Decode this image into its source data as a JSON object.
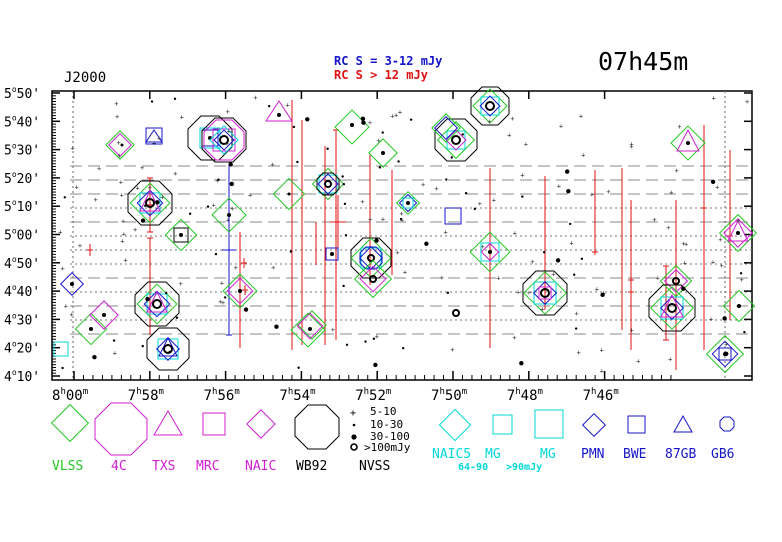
{
  "header": {
    "epoch": "J2000",
    "field_label": "07h45m",
    "rc_faint_label": "RC S = 3-12 mJy",
    "rc_bright_label": "RC S > 12 mJy",
    "rc_faint_color": "#1414c8",
    "rc_bright_color": "#e01010"
  },
  "axes": {
    "dec_ticks": [
      {
        "deg": "4",
        "min": "10'"
      },
      {
        "deg": "4",
        "min": "20'"
      },
      {
        "deg": "4",
        "min": "30'"
      },
      {
        "deg": "4",
        "min": "40'"
      },
      {
        "deg": "4",
        "min": "50'"
      },
      {
        "deg": "5",
        "min": "00'"
      },
      {
        "deg": "5",
        "min": "10'"
      },
      {
        "deg": "5",
        "min": "20'"
      },
      {
        "deg": "5",
        "min": "30'"
      },
      {
        "deg": "5",
        "min": "40'"
      },
      {
        "deg": "5",
        "min": "50'"
      }
    ],
    "ra_ticks": [
      {
        "h": "8",
        "m": "00"
      },
      {
        "h": "7",
        "m": "58"
      },
      {
        "h": "7",
        "m": "56"
      },
      {
        "h": "7",
        "m": "54"
      },
      {
        "h": "7",
        "m": "52"
      },
      {
        "h": "7",
        "m": "50"
      },
      {
        "h": "7",
        "m": "48"
      },
      {
        "h": "7",
        "m": "46"
      }
    ]
  },
  "legend": {
    "catalogs": [
      {
        "label": "VLSS",
        "symbol": "diamond-icon",
        "color": "#22c822"
      },
      {
        "label": "4C",
        "symbol": "octagon-icon",
        "color": "#d020d0"
      },
      {
        "label": "TXS",
        "symbol": "triangle-icon",
        "color": "#d020d0"
      },
      {
        "label": "MRC",
        "symbol": "square-icon",
        "color": "#d020d0"
      },
      {
        "label": "NAIC",
        "symbol": "diamond-icon",
        "color": "#d020d0"
      },
      {
        "label": "WB92",
        "symbol": "octagon-icon",
        "color": "#000000"
      }
    ],
    "nvss": {
      "title": "NVSS",
      "bins": [
        "5-10",
        "10-30",
        "30-100",
        ">100mJy"
      ]
    },
    "cyan": {
      "naic5": "NAIC5",
      "mg1": "MG",
      "mg2": "MG",
      "mg1_range": "64-90",
      "mg2_range": ">90mJy",
      "color": "#00d8d8"
    },
    "blue": [
      {
        "label": "PMN",
        "symbol": "diamond-icon"
      },
      {
        "label": "BWE",
        "symbol": "square-icon"
      },
      {
        "label": "87GB",
        "symbol": "triangle-icon"
      },
      {
        "label": "GB6",
        "symbol": "octagon-icon"
      }
    ],
    "blue_color": "#1414c8"
  }
}
